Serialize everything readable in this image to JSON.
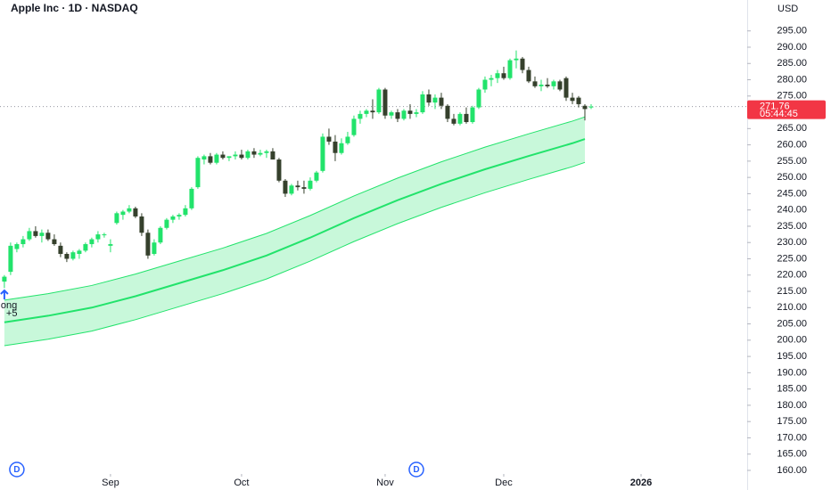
{
  "chart_data": {
    "type": "candlestick",
    "title": "Apple Inc · 1D · NASDAQ",
    "currency": "USD",
    "up_color": "#22e36b",
    "down_color": "#35402c",
    "ohlc": [
      [
        218,
        220,
        216,
        219.5
      ],
      [
        221,
        230,
        220,
        229
      ],
      [
        228,
        230,
        227,
        229.5
      ],
      [
        229.5,
        232,
        228.5,
        231
      ],
      [
        231,
        234.5,
        230.5,
        233.5
      ],
      [
        233.5,
        235,
        231.5,
        232
      ],
      [
        232,
        234,
        230,
        233
      ],
      [
        233,
        234,
        230.5,
        231
      ],
      [
        231,
        232.5,
        229,
        229.5
      ],
      [
        229,
        230,
        225.5,
        226.5
      ],
      [
        226.5,
        227,
        224,
        225
      ],
      [
        225,
        227.5,
        224.5,
        227
      ],
      [
        226.5,
        228,
        225,
        227.5
      ],
      [
        227.5,
        230,
        227,
        229.5
      ],
      [
        229.5,
        231.5,
        228.5,
        231
      ],
      [
        231,
        233.5,
        230,
        232.5
      ],
      [
        232.5,
        233,
        231.5,
        232.5
      ],
      [
        229,
        231,
        227,
        229.5
      ],
      [
        236,
        239.5,
        235.5,
        239
      ],
      [
        238.5,
        240,
        237,
        239.5
      ],
      [
        239.5,
        241.5,
        239,
        240.5
      ],
      [
        240.5,
        241,
        237.5,
        238
      ],
      [
        238,
        239,
        232,
        233
      ],
      [
        233,
        234,
        225,
        226
      ],
      [
        226.5,
        231,
        226,
        230
      ],
      [
        230,
        235,
        229.5,
        234.5
      ],
      [
        234.5,
        237.5,
        234,
        237
      ],
      [
        237,
        238.5,
        236,
        238
      ],
      [
        238,
        239,
        237,
        238.5
      ],
      [
        238.5,
        241.5,
        238,
        240.5
      ],
      [
        240.5,
        247,
        240,
        246.5
      ],
      [
        247,
        256.5,
        246.5,
        256
      ],
      [
        255.5,
        257,
        254,
        256.5
      ],
      [
        256.5,
        257.5,
        254,
        254.5
      ],
      [
        254.5,
        257.5,
        254,
        257
      ],
      [
        257,
        258,
        255.5,
        256
      ],
      [
        256,
        256.5,
        255,
        256.5
      ],
      [
        256.5,
        258,
        255.5,
        257
      ],
      [
        257,
        258.5,
        255.5,
        256
      ],
      [
        256,
        258.5,
        255.5,
        258
      ],
      [
        258,
        259,
        256,
        257
      ],
      [
        257,
        258.5,
        256.5,
        257.5
      ],
      [
        257.5,
        258.5,
        256,
        258
      ],
      [
        258,
        259,
        255.5,
        255.5
      ],
      [
        255.5,
        256,
        248.5,
        249
      ],
      [
        249,
        249.5,
        244,
        245
      ],
      [
        245,
        248,
        244.5,
        247.5
      ],
      [
        247.5,
        249,
        246,
        247
      ],
      [
        247,
        249,
        245,
        246.5
      ],
      [
        246.5,
        250,
        246,
        249
      ],
      [
        249,
        252,
        248.5,
        251.5
      ],
      [
        252,
        263.5,
        251.5,
        262.5
      ],
      [
        262.5,
        265,
        260,
        261
      ],
      [
        261,
        263,
        255,
        257.5
      ],
      [
        257.5,
        262,
        257,
        260.5
      ],
      [
        260.5,
        264,
        260,
        262.5
      ],
      [
        263,
        269,
        262.5,
        268
      ],
      [
        268,
        270.5,
        266.5,
        269.5
      ],
      [
        269.5,
        271,
        268.5,
        270.5
      ],
      [
        270.5,
        274,
        268,
        270
      ],
      [
        270,
        277.5,
        269.5,
        277
      ],
      [
        277,
        277.5,
        268,
        269
      ],
      [
        269,
        270.5,
        268,
        270
      ],
      [
        270,
        271,
        267,
        268
      ],
      [
        268,
        271,
        267.5,
        270.5
      ],
      [
        270.5,
        272.5,
        268,
        269.5
      ],
      [
        269.5,
        271,
        268.5,
        270
      ],
      [
        270,
        276.5,
        269.5,
        275.5
      ],
      [
        275.5,
        277,
        272,
        273
      ],
      [
        273,
        275.5,
        271,
        274.5
      ],
      [
        274.5,
        276,
        271,
        272
      ],
      [
        272,
        272.5,
        267,
        268
      ],
      [
        268,
        269.5,
        266,
        266.5
      ],
      [
        266.5,
        270,
        266,
        269.5
      ],
      [
        269.5,
        271.5,
        266.5,
        267
      ],
      [
        267,
        272,
        266.5,
        271.5
      ],
      [
        271.5,
        277.5,
        271,
        277
      ],
      [
        277,
        281,
        276,
        280
      ],
      [
        280,
        281.5,
        278,
        280.5
      ],
      [
        280.5,
        283,
        279,
        282
      ],
      [
        282,
        284,
        280,
        280.5
      ],
      [
        280.5,
        286.5,
        280,
        286
      ],
      [
        286,
        289,
        283.5,
        286.5
      ],
      [
        286.5,
        287,
        282,
        283
      ],
      [
        283,
        284,
        279,
        279.5
      ],
      [
        279.5,
        281,
        277.5,
        278
      ],
      [
        278,
        280,
        276.5,
        278.5
      ],
      [
        278.5,
        280.5,
        277.5,
        278
      ],
      [
        278,
        280,
        277,
        279.5
      ],
      [
        279.5,
        280,
        276.5,
        277
      ],
      [
        280.5,
        281,
        273.5,
        274.5
      ],
      [
        274.5,
        276,
        272.5,
        273.5
      ],
      [
        274.5,
        275,
        271.5,
        272.5
      ],
      [
        272,
        272.5,
        267.5,
        271
      ],
      [
        271.5,
        272.5,
        271,
        271.76
      ]
    ],
    "band": {
      "color": "#22e36b",
      "x": [
        0,
        7,
        14,
        21,
        28,
        35,
        42,
        49,
        56,
        63,
        70,
        77,
        84,
        91,
        93
      ],
      "upper": [
        212.3,
        214.3,
        216.8,
        220.3,
        224.3,
        228.3,
        232.8,
        238.3,
        244.3,
        249.8,
        254.8,
        259.3,
        263.4,
        267.3,
        268.6
      ],
      "middle": [
        205.5,
        207.5,
        210,
        213.5,
        217.5,
        221.5,
        226,
        231.5,
        237.5,
        243,
        248,
        252.5,
        256.6,
        260.5,
        261.8
      ],
      "lower": [
        198.3,
        200.3,
        202.8,
        206.3,
        210.3,
        214.3,
        218.8,
        224.3,
        230.3,
        235.8,
        240.8,
        245.3,
        249.4,
        253.3,
        254.6
      ]
    },
    "last_price": 271.76,
    "countdown": "05:44:45",
    "last_price_color": "#f23645",
    "annotations": [
      {
        "x": 0,
        "texts": [
          "ong",
          "+5"
        ]
      }
    ],
    "markers": [
      {
        "x": 2,
        "label": "D"
      },
      {
        "x": 66,
        "label": "D"
      }
    ],
    "xlim": [
      -0.7,
      119
    ],
    "xticks": [
      {
        "value": 17,
        "label": "Sep"
      },
      {
        "value": 38,
        "label": "Oct"
      },
      {
        "value": 61,
        "label": "Nov"
      },
      {
        "value": 80,
        "label": "Dec"
      },
      {
        "value": 102,
        "label": "2026"
      }
    ],
    "ylim": [
      158.9,
      304.5
    ],
    "yticks": [
      {
        "value": 295,
        "label": "295.00"
      },
      {
        "value": 290,
        "label": "290.00"
      },
      {
        "value": 285,
        "label": "285.00"
      },
      {
        "value": 280,
        "label": "280.00"
      },
      {
        "value": 275,
        "label": "275.00"
      },
      {
        "value": 270,
        "label": "270.00"
      },
      {
        "value": 265,
        "label": "265.00"
      },
      {
        "value": 260,
        "label": "260.00"
      },
      {
        "value": 255,
        "label": "255.00"
      },
      {
        "value": 250,
        "label": "250.00"
      },
      {
        "value": 245,
        "label": "245.00"
      },
      {
        "value": 240,
        "label": "240.00"
      },
      {
        "value": 235,
        "label": "235.00"
      },
      {
        "value": 230,
        "label": "230.00"
      },
      {
        "value": 225,
        "label": "225.00"
      },
      {
        "value": 220,
        "label": "220.00"
      },
      {
        "value": 215,
        "label": "215.00"
      },
      {
        "value": 210,
        "label": "210.00"
      },
      {
        "value": 205,
        "label": "205.00"
      },
      {
        "value": 200,
        "label": "200.00"
      },
      {
        "value": 195,
        "label": "195.00"
      },
      {
        "value": 190,
        "label": "190.00"
      },
      {
        "value": 185,
        "label": "185.00"
      },
      {
        "value": 180,
        "label": "180.00"
      },
      {
        "value": 175,
        "label": "175.00"
      },
      {
        "value": 170,
        "label": "170.00"
      },
      {
        "value": 165,
        "label": "165.00"
      },
      {
        "value": 160,
        "label": "160.00"
      }
    ]
  }
}
